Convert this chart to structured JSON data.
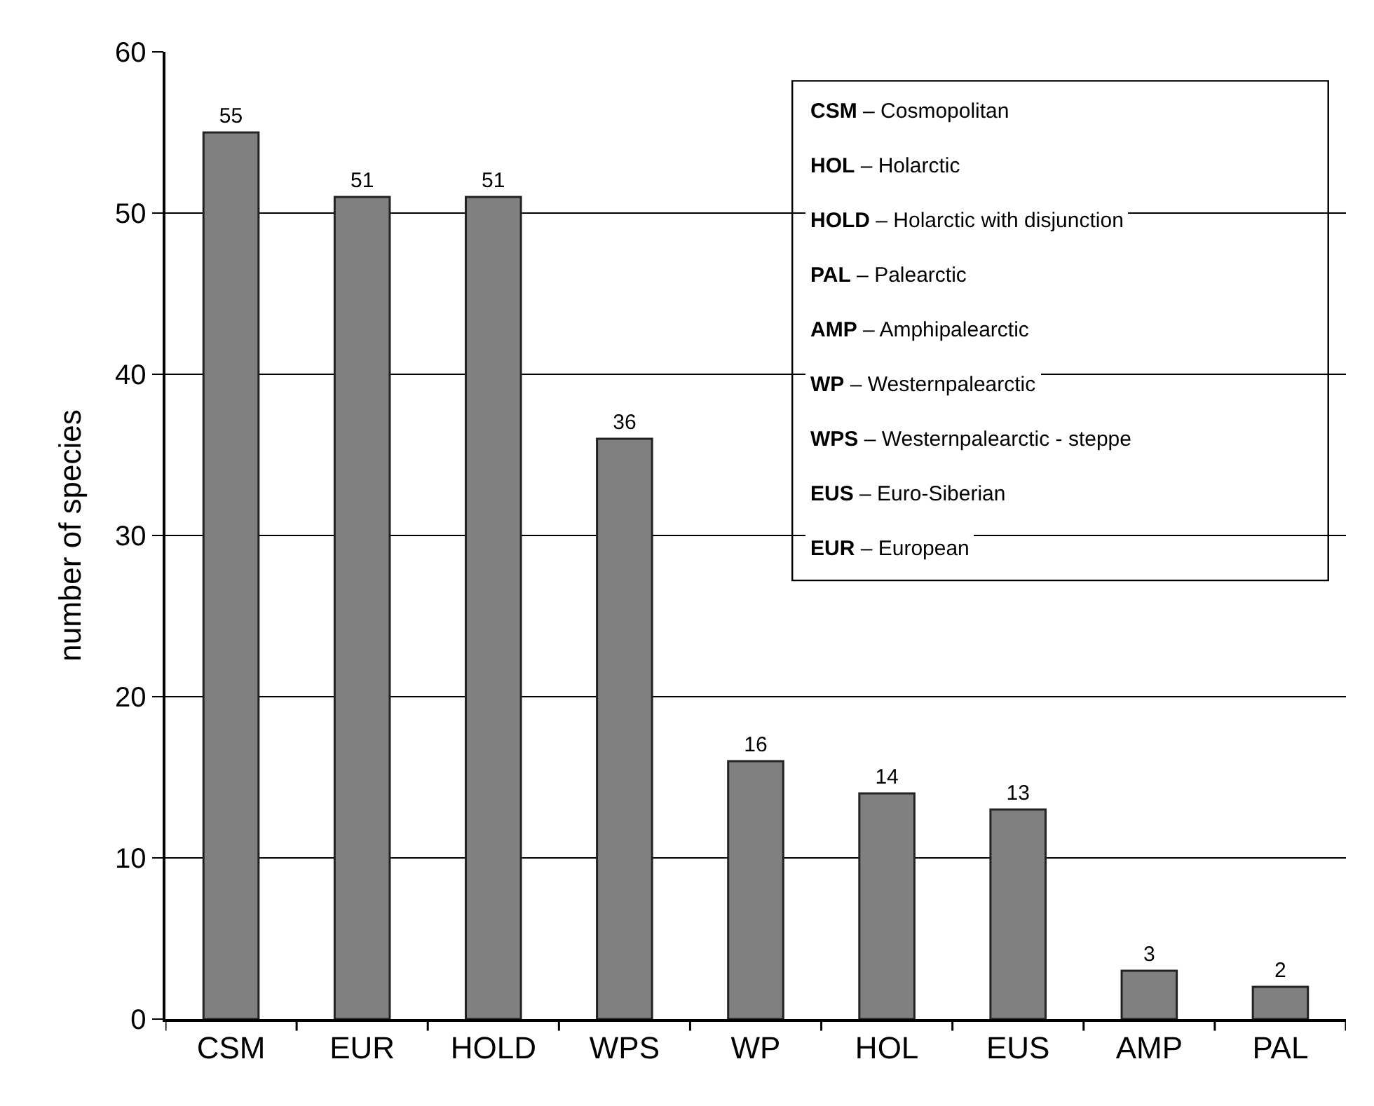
{
  "chart_data": {
    "type": "bar",
    "ylabel": "number of species",
    "categories": [
      "CSM",
      "EUR",
      "HOLD",
      "WPS",
      "WP",
      "HOL",
      "EUS",
      "AMP",
      "PAL"
    ],
    "values": [
      55,
      51,
      51,
      36,
      16,
      14,
      13,
      3,
      2
    ],
    "color": "#808080",
    "ylim": [
      0,
      60
    ],
    "yticks": [
      0,
      10,
      20,
      30,
      40,
      50,
      60
    ],
    "grid": "y",
    "data_labels": true,
    "annotations": [
      "CSM – Cosmopolitan",
      "HOL – Holarctic",
      "HOLD – Holarctic with disjunction",
      "PAL – Palearctic",
      "AMP – Amphipalearctic",
      "WP – Westernpalearctic",
      "WPS – Westernpalearctic - steppe",
      "EUS – Euro-Siberian",
      "EUR – European"
    ]
  }
}
